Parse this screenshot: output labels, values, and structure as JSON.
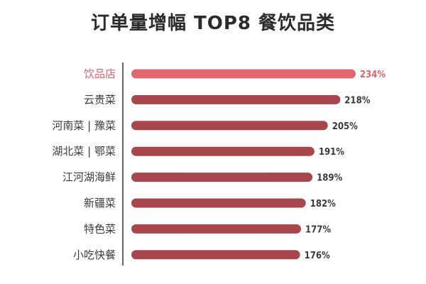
{
  "chart_data": {
    "type": "bar",
    "orientation": "horizontal",
    "title": "订单量增幅 TOP8 餐饮品类",
    "categories": [
      "饮品店",
      "云贵菜",
      "河南菜 | 豫菜",
      "湖北菜 | 鄂菜",
      "江河湖海鲜",
      "新疆菜",
      "特色菜",
      "小吃快餐"
    ],
    "values": [
      234,
      218,
      205,
      191,
      189,
      182,
      177,
      176
    ],
    "value_labels": [
      "234%",
      "218%",
      "205%",
      "191%",
      "189%",
      "182%",
      "177%",
      "176%"
    ],
    "unit": "%",
    "highlight_index": 0,
    "colors": {
      "bar": "#a8464e",
      "highlight_bar": "#e06670",
      "highlight_text": "#d9646c",
      "text": "#3a3a3a",
      "axis": "#333333"
    },
    "grid": false,
    "legend": "none"
  }
}
